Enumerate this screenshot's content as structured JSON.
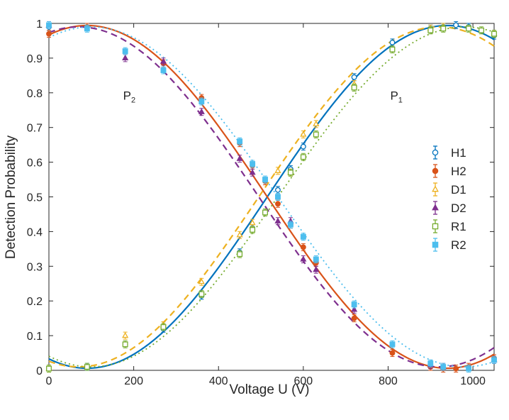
{
  "chart_data": {
    "type": "scatter",
    "title": "",
    "xlabel": "Voltage U (V)",
    "ylabel": "Detection Probability",
    "xlim": [
      0,
      1050
    ],
    "ylim": [
      0,
      1
    ],
    "x_ticks": [
      0,
      200,
      400,
      600,
      800,
      1000
    ],
    "y_ticks": [
      0,
      0.1,
      0.2,
      0.3,
      0.4,
      0.5,
      0.6,
      0.7,
      0.8,
      0.9,
      1
    ],
    "annotations": [
      {
        "base": "P",
        "sub": "2",
        "x": 175,
        "y": 0.78
      },
      {
        "base": "P",
        "sub": "1",
        "x": 805,
        "y": 0.78
      }
    ],
    "legend_position": "center-right",
    "series": [
      {
        "name": "H1",
        "color": "#0072BD",
        "marker": "circle-open",
        "fit": "solid",
        "fit_params": {
          "offset": 0.5,
          "amp": -0.494,
          "period": 1700,
          "phase": 90
        },
        "points": [
          [
            0,
            0.99
          ],
          [
            90,
            0.01
          ],
          [
            270,
            0.12
          ],
          [
            360,
            0.215
          ],
          [
            450,
            0.34
          ],
          [
            480,
            0.41
          ],
          [
            510,
            0.455
          ],
          [
            540,
            0.52
          ],
          [
            570,
            0.58
          ],
          [
            600,
            0.645
          ],
          [
            720,
            0.845
          ],
          [
            810,
            0.945
          ],
          [
            900,
            0.985
          ],
          [
            930,
            0.99
          ],
          [
            960,
            0.995
          ],
          [
            990,
            0.99
          ],
          [
            1050,
            0.965
          ]
        ]
      },
      {
        "name": "H2",
        "color": "#D95319",
        "marker": "circle-filled",
        "fit": "solid",
        "fit_params": {
          "offset": 0.5,
          "amp": 0.494,
          "period": 1700,
          "phase": 90
        },
        "points": [
          [
            0,
            0.97
          ],
          [
            90,
            0.99
          ],
          [
            270,
            0.885
          ],
          [
            360,
            0.785
          ],
          [
            450,
            0.655
          ],
          [
            480,
            0.59
          ],
          [
            510,
            0.545
          ],
          [
            540,
            0.48
          ],
          [
            570,
            0.42
          ],
          [
            600,
            0.355
          ],
          [
            630,
            0.31
          ],
          [
            720,
            0.15
          ],
          [
            810,
            0.05
          ],
          [
            900,
            0.01
          ],
          [
            930,
            0.005
          ],
          [
            960,
            0.005
          ],
          [
            990,
            0.01
          ],
          [
            1050,
            0.035
          ]
        ]
      },
      {
        "name": "D1",
        "color": "#EDB120",
        "marker": "triangle-open",
        "fit": "dashed",
        "fit_params": {
          "offset": 0.5,
          "amp": -0.49,
          "period": 1700,
          "phase": 70
        },
        "points": [
          [
            0,
            0.005
          ],
          [
            180,
            0.1
          ],
          [
            270,
            0.13
          ],
          [
            360,
            0.255
          ],
          [
            450,
            0.39
          ],
          [
            480,
            0.425
          ],
          [
            540,
            0.575
          ],
          [
            570,
            0.57
          ],
          [
            600,
            0.68
          ],
          [
            630,
            0.71
          ],
          [
            720,
            0.825
          ],
          [
            900,
            0.985
          ],
          [
            930,
            0.99
          ],
          [
            1050,
            0.97
          ]
        ]
      },
      {
        "name": "D2",
        "color": "#7E2F8E",
        "marker": "triangle-filled",
        "fit": "dashed",
        "fit_params": {
          "offset": 0.5,
          "amp": 0.49,
          "period": 1700,
          "phase": 70
        },
        "points": [
          [
            0,
            0.995
          ],
          [
            180,
            0.9
          ],
          [
            270,
            0.89
          ],
          [
            360,
            0.745
          ],
          [
            450,
            0.61
          ],
          [
            480,
            0.57
          ],
          [
            540,
            0.43
          ],
          [
            570,
            0.43
          ],
          [
            600,
            0.32
          ],
          [
            630,
            0.29
          ],
          [
            720,
            0.175
          ],
          [
            900,
            0.015
          ],
          [
            930,
            0.01
          ],
          [
            1050,
            0.03
          ]
        ]
      },
      {
        "name": "R1",
        "color": "#77AC30",
        "marker": "square-open",
        "fit": "dotted",
        "fit_params": {
          "offset": 0.5,
          "amp": -0.49,
          "period": 1760,
          "phase": 100
        },
        "points": [
          [
            0,
            0.005
          ],
          [
            90,
            0.01
          ],
          [
            180,
            0.075
          ],
          [
            270,
            0.125
          ],
          [
            360,
            0.22
          ],
          [
            450,
            0.335
          ],
          [
            480,
            0.405
          ],
          [
            510,
            0.455
          ],
          [
            570,
            0.57
          ],
          [
            600,
            0.615
          ],
          [
            630,
            0.68
          ],
          [
            720,
            0.815
          ],
          [
            810,
            0.925
          ],
          [
            900,
            0.98
          ],
          [
            930,
            0.985
          ],
          [
            990,
            0.985
          ],
          [
            1020,
            0.98
          ],
          [
            1050,
            0.97
          ]
        ]
      },
      {
        "name": "R2",
        "color": "#4DBEEE",
        "marker": "square-filled",
        "fit": "dotted",
        "fit_params": {
          "offset": 0.5,
          "amp": 0.49,
          "period": 1760,
          "phase": 100
        },
        "points": [
          [
            0,
            0.995
          ],
          [
            90,
            0.985
          ],
          [
            180,
            0.92
          ],
          [
            270,
            0.865
          ],
          [
            360,
            0.775
          ],
          [
            450,
            0.66
          ],
          [
            480,
            0.595
          ],
          [
            510,
            0.55
          ],
          [
            540,
            0.5
          ],
          [
            570,
            0.42
          ],
          [
            600,
            0.385
          ],
          [
            630,
            0.32
          ],
          [
            720,
            0.19
          ],
          [
            810,
            0.075
          ],
          [
            900,
            0.02
          ],
          [
            930,
            0.01
          ],
          [
            990,
            0.005
          ],
          [
            1050,
            0.03
          ]
        ]
      }
    ]
  }
}
